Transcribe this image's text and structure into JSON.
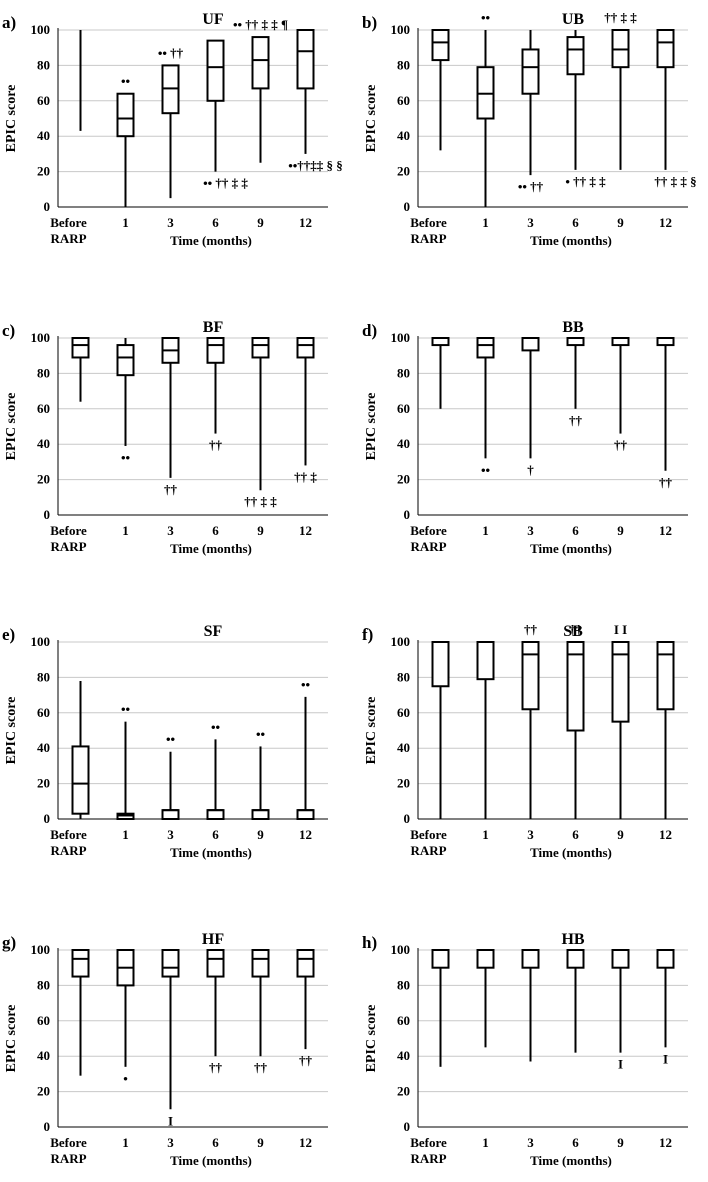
{
  "figure": {
    "shared_axes": {
      "ylabel": "EPIC score",
      "xlabel": "Time (months)",
      "categories": [
        [
          "Before",
          "RARP"
        ],
        "1",
        "3",
        "6",
        "9",
        "12"
      ],
      "yticks": [
        0,
        20,
        40,
        60,
        80,
        100
      ],
      "ylim": [
        0,
        100
      ]
    }
  },
  "chart_data": [
    {
      "type": "boxplot",
      "panel": "a)",
      "title": "UF",
      "categories": [
        "Before RARP",
        "1",
        "3",
        "6",
        "9",
        "12"
      ],
      "boxes": [
        {
          "whisker_low": 43,
          "q1": 100,
          "median": 100,
          "q3": 100,
          "whisker_high": 100,
          "annotation": "",
          "annotation_pos": "above"
        },
        {
          "whisker_low": 0,
          "q1": 40,
          "median": 50,
          "q3": 64,
          "whisker_high": 64,
          "annotation": "••",
          "annotation_pos": "above"
        },
        {
          "whisker_low": 5,
          "q1": 53,
          "median": 67,
          "q3": 80,
          "whisker_high": 80,
          "annotation": "•• ††",
          "annotation_pos": "above"
        },
        {
          "whisker_low": 20,
          "q1": 60,
          "median": 79,
          "q3": 94,
          "whisker_high": 94,
          "annotation": "•• †† ‡ ‡",
          "annotation_pos": "below"
        },
        {
          "whisker_low": 25,
          "q1": 67,
          "median": 83,
          "q3": 96,
          "whisker_high": 96,
          "annotation": "•• †† ‡ ‡ ¶",
          "annotation_pos": "above"
        },
        {
          "whisker_low": 30,
          "q1": 67,
          "median": 88,
          "q3": 100,
          "whisker_high": 100,
          "annotation": "••††‡‡ § §",
          "annotation_pos": "below"
        }
      ],
      "ylabel": "EPIC score",
      "xlabel": "Time (months)",
      "ylim": [
        0,
        100
      ]
    },
    {
      "type": "boxplot",
      "panel": "b)",
      "title": "UB",
      "categories": [
        "Before RARP",
        "1",
        "3",
        "6",
        "9",
        "12"
      ],
      "boxes": [
        {
          "whisker_low": 32,
          "q1": 83,
          "median": 93,
          "q3": 100,
          "whisker_high": 100,
          "annotation": "",
          "annotation_pos": "above"
        },
        {
          "whisker_low": 0,
          "q1": 50,
          "median": 64,
          "q3": 79,
          "whisker_high": 100,
          "annotation": "••",
          "annotation_pos": "above"
        },
        {
          "whisker_low": 18,
          "q1": 64,
          "median": 79,
          "q3": 89,
          "whisker_high": 100,
          "annotation": "•• ††",
          "annotation_pos": "below"
        },
        {
          "whisker_low": 21,
          "q1": 75,
          "median": 89,
          "q3": 96,
          "whisker_high": 100,
          "annotation": "• †† ‡ ‡",
          "annotation_pos": "below"
        },
        {
          "whisker_low": 21,
          "q1": 79,
          "median": 89,
          "q3": 100,
          "whisker_high": 100,
          "annotation": "†† ‡ ‡",
          "annotation_pos": "above"
        },
        {
          "whisker_low": 21,
          "q1": 79,
          "median": 93,
          "q3": 100,
          "whisker_high": 100,
          "annotation": "†† ‡ ‡ §",
          "annotation_pos": "below"
        }
      ],
      "ylabel": "EPIC score",
      "xlabel": "Time (months)",
      "ylim": [
        0,
        100
      ]
    },
    {
      "type": "boxplot",
      "panel": "c)",
      "title": "BF",
      "categories": [
        "Before RARP",
        "1",
        "3",
        "6",
        "9",
        "12"
      ],
      "boxes": [
        {
          "whisker_low": 64,
          "q1": 89,
          "median": 96,
          "q3": 100,
          "whisker_high": 100,
          "annotation": "",
          "annotation_pos": "above"
        },
        {
          "whisker_low": 39,
          "q1": 79,
          "median": 89,
          "q3": 96,
          "whisker_high": 100,
          "annotation": "••",
          "annotation_pos": "below"
        },
        {
          "whisker_low": 21,
          "q1": 86,
          "median": 93,
          "q3": 100,
          "whisker_high": 100,
          "annotation": "††",
          "annotation_pos": "below"
        },
        {
          "whisker_low": 46,
          "q1": 86,
          "median": 96,
          "q3": 100,
          "whisker_high": 100,
          "annotation": "††",
          "annotation_pos": "below"
        },
        {
          "whisker_low": 14,
          "q1": 89,
          "median": 96,
          "q3": 100,
          "whisker_high": 100,
          "annotation": "†† ‡ ‡",
          "annotation_pos": "below"
        },
        {
          "whisker_low": 28,
          "q1": 89,
          "median": 96,
          "q3": 100,
          "whisker_high": 100,
          "annotation": "†† ‡",
          "annotation_pos": "below"
        }
      ],
      "ylabel": "EPIC score",
      "xlabel": "Time (months)",
      "ylim": [
        0,
        100
      ]
    },
    {
      "type": "boxplot",
      "panel": "d)",
      "title": "BB",
      "categories": [
        "Before RARP",
        "1",
        "3",
        "6",
        "9",
        "12"
      ],
      "boxes": [
        {
          "whisker_low": 60,
          "q1": 96,
          "median": 100,
          "q3": 100,
          "whisker_high": 100,
          "annotation": "",
          "annotation_pos": "above"
        },
        {
          "whisker_low": 32,
          "q1": 89,
          "median": 96,
          "q3": 100,
          "whisker_high": 100,
          "annotation": "••",
          "annotation_pos": "below"
        },
        {
          "whisker_low": 32,
          "q1": 93,
          "median": 100,
          "q3": 100,
          "whisker_high": 100,
          "annotation": "†",
          "annotation_pos": "below"
        },
        {
          "whisker_low": 60,
          "q1": 96,
          "median": 100,
          "q3": 100,
          "whisker_high": 100,
          "annotation": "††",
          "annotation_pos": "below"
        },
        {
          "whisker_low": 46,
          "q1": 96,
          "median": 100,
          "q3": 100,
          "whisker_high": 100,
          "annotation": "††",
          "annotation_pos": "below"
        },
        {
          "whisker_low": 25,
          "q1": 96,
          "median": 100,
          "q3": 100,
          "whisker_high": 100,
          "annotation": "††",
          "annotation_pos": "below"
        }
      ],
      "ylabel": "EPIC score",
      "xlabel": "Time (months)",
      "ylim": [
        0,
        100
      ]
    },
    {
      "type": "boxplot",
      "panel": "e)",
      "title": "SF",
      "categories": [
        "Before RARP",
        "1",
        "3",
        "6",
        "9",
        "12"
      ],
      "boxes": [
        {
          "whisker_low": 0,
          "q1": 3,
          "median": 20,
          "q3": 41,
          "whisker_high": 78,
          "annotation": "",
          "annotation_pos": "above"
        },
        {
          "whisker_low": 0,
          "q1": 0,
          "median": 2,
          "q3": 3,
          "whisker_high": 55,
          "annotation": "••",
          "annotation_pos": "above"
        },
        {
          "whisker_low": 0,
          "q1": 0,
          "median": 5,
          "q3": 5,
          "whisker_high": 38,
          "annotation": "••",
          "annotation_pos": "above"
        },
        {
          "whisker_low": 0,
          "q1": 0,
          "median": 5,
          "q3": 5,
          "whisker_high": 45,
          "annotation": "••",
          "annotation_pos": "above"
        },
        {
          "whisker_low": 0,
          "q1": 0,
          "median": 5,
          "q3": 5,
          "whisker_high": 41,
          "annotation": "••",
          "annotation_pos": "above"
        },
        {
          "whisker_low": 0,
          "q1": 0,
          "median": 5,
          "q3": 5,
          "whisker_high": 69,
          "annotation": "••",
          "annotation_pos": "above"
        }
      ],
      "ylabel": "EPIC score",
      "xlabel": "Time (months)",
      "ylim": [
        0,
        100
      ]
    },
    {
      "type": "boxplot",
      "panel": "f)",
      "title": "SB",
      "categories": [
        "Before RARP",
        "1",
        "3",
        "6",
        "9",
        "12"
      ],
      "boxes": [
        {
          "whisker_low": 0,
          "q1": 75,
          "median": 100,
          "q3": 100,
          "whisker_high": 100,
          "annotation": "",
          "annotation_pos": "above"
        },
        {
          "whisker_low": 0,
          "q1": 79,
          "median": 100,
          "q3": 100,
          "whisker_high": 100,
          "annotation": "",
          "annotation_pos": "above"
        },
        {
          "whisker_low": 0,
          "q1": 62,
          "median": 93,
          "q3": 100,
          "whisker_high": 100,
          "annotation": "††",
          "annotation_pos": "above"
        },
        {
          "whisker_low": 0,
          "q1": 50,
          "median": 93,
          "q3": 100,
          "whisker_high": 100,
          "annotation": "††",
          "annotation_pos": "above"
        },
        {
          "whisker_low": 0,
          "q1": 55,
          "median": 93,
          "q3": 100,
          "whisker_high": 100,
          "annotation": "I I",
          "annotation_pos": "above"
        },
        {
          "whisker_low": 0,
          "q1": 62,
          "median": 93,
          "q3": 100,
          "whisker_high": 100,
          "annotation": "",
          "annotation_pos": "above"
        }
      ],
      "ylabel": "EPIC score",
      "xlabel": "Time (months)",
      "ylim": [
        0,
        100
      ]
    },
    {
      "type": "boxplot",
      "panel": "g)",
      "title": "HF",
      "categories": [
        "Before RARP",
        "1",
        "3",
        "6",
        "9",
        "12"
      ],
      "boxes": [
        {
          "whisker_low": 29,
          "q1": 85,
          "median": 95,
          "q3": 100,
          "whisker_high": 100,
          "annotation": "",
          "annotation_pos": "above"
        },
        {
          "whisker_low": 34,
          "q1": 80,
          "median": 90,
          "q3": 100,
          "whisker_high": 100,
          "annotation": "•",
          "annotation_pos": "below"
        },
        {
          "whisker_low": 10,
          "q1": 85,
          "median": 90,
          "q3": 100,
          "whisker_high": 100,
          "annotation": "I",
          "annotation_pos": "below"
        },
        {
          "whisker_low": 40,
          "q1": 85,
          "median": 95,
          "q3": 100,
          "whisker_high": 100,
          "annotation": "††",
          "annotation_pos": "below"
        },
        {
          "whisker_low": 40,
          "q1": 85,
          "median": 95,
          "q3": 100,
          "whisker_high": 100,
          "annotation": "††",
          "annotation_pos": "below"
        },
        {
          "whisker_low": 44,
          "q1": 85,
          "median": 95,
          "q3": 100,
          "whisker_high": 100,
          "annotation": "††",
          "annotation_pos": "below"
        }
      ],
      "ylabel": "EPIC score",
      "xlabel": "Time (months)",
      "ylim": [
        0,
        100
      ]
    },
    {
      "type": "boxplot",
      "panel": "h)",
      "title": "HB",
      "categories": [
        "Before RARP",
        "1",
        "3",
        "6",
        "9",
        "12"
      ],
      "boxes": [
        {
          "whisker_low": 34,
          "q1": 90,
          "median": 100,
          "q3": 100,
          "whisker_high": 100,
          "annotation": "",
          "annotation_pos": "below"
        },
        {
          "whisker_low": 45,
          "q1": 90,
          "median": 100,
          "q3": 100,
          "whisker_high": 100,
          "annotation": "",
          "annotation_pos": "below"
        },
        {
          "whisker_low": 37,
          "q1": 90,
          "median": 100,
          "q3": 100,
          "whisker_high": 100,
          "annotation": "",
          "annotation_pos": "below"
        },
        {
          "whisker_low": 42,
          "q1": 90,
          "median": 100,
          "q3": 100,
          "whisker_high": 100,
          "annotation": "",
          "annotation_pos": "below"
        },
        {
          "whisker_low": 42,
          "q1": 90,
          "median": 100,
          "q3": 100,
          "whisker_high": 100,
          "annotation": "I",
          "annotation_pos": "below"
        },
        {
          "whisker_low": 45,
          "q1": 90,
          "median": 100,
          "q3": 100,
          "whisker_high": 100,
          "annotation": "I",
          "annotation_pos": "below"
        }
      ],
      "ylabel": "EPIC score",
      "xlabel": "Time (months)",
      "ylim": [
        0,
        100
      ]
    }
  ]
}
